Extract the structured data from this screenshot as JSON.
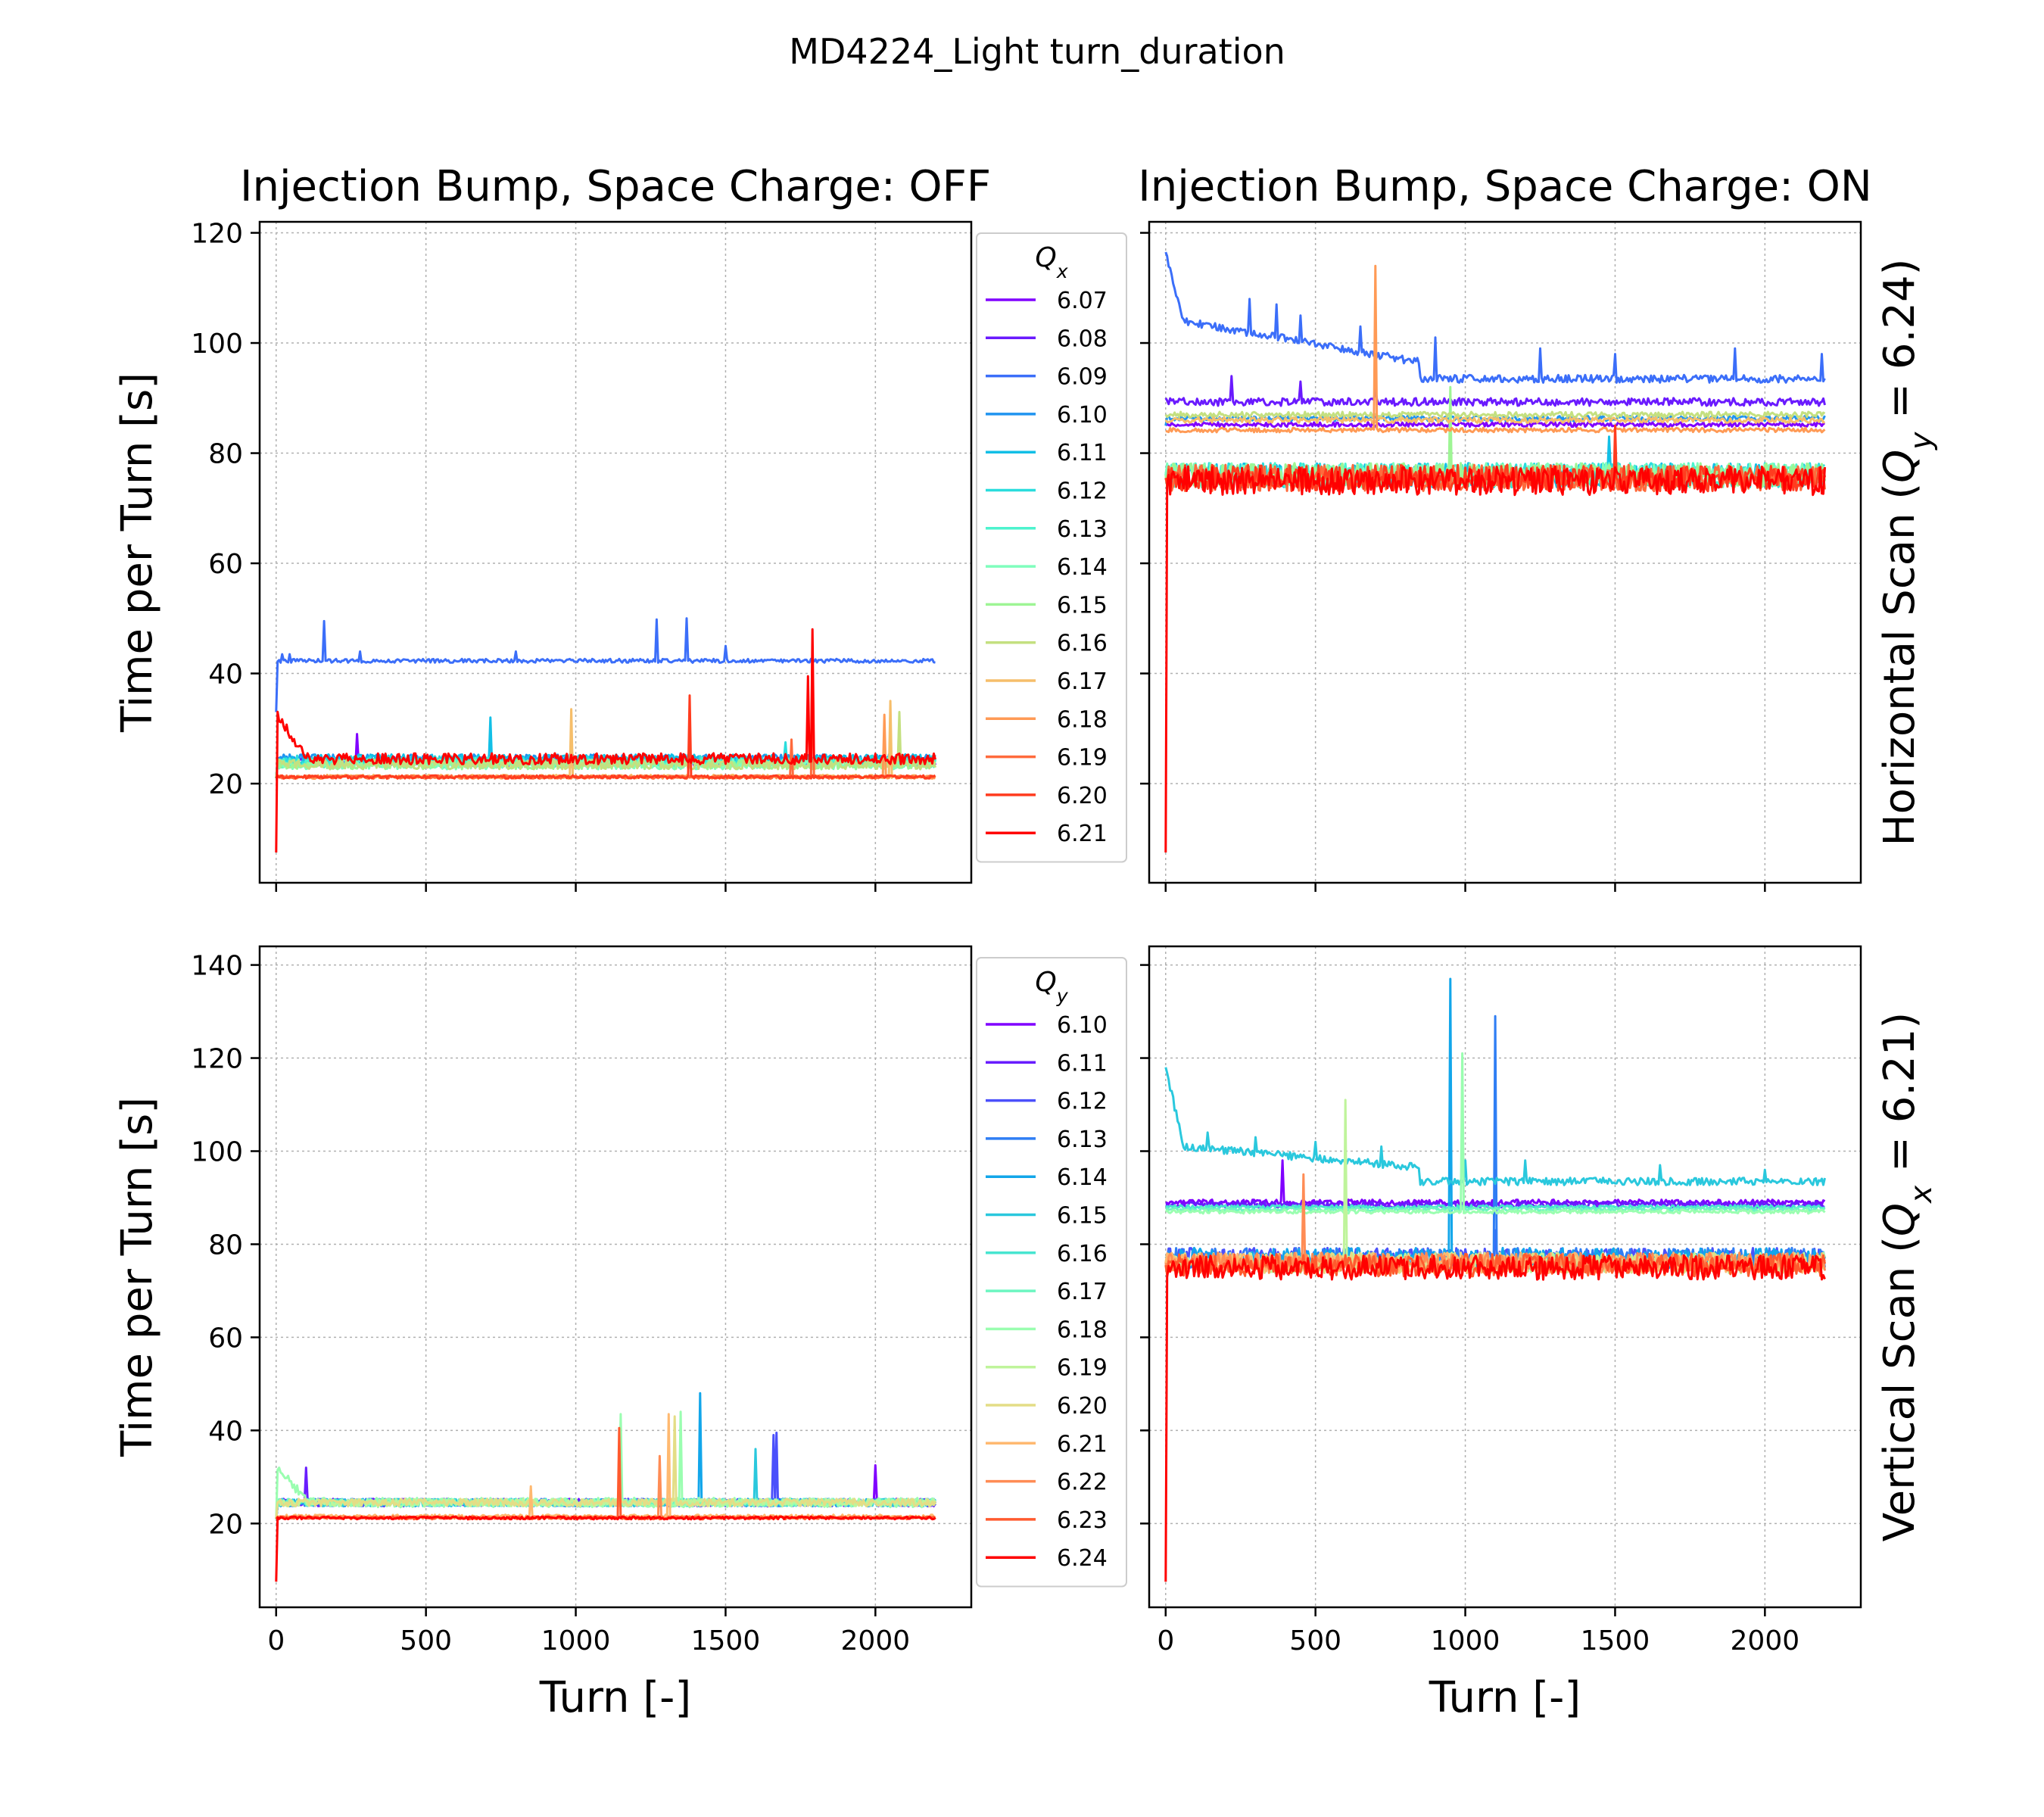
{
  "figure": {
    "suptitle": "MD4224_Light turn_duration",
    "col_titles": [
      "Injection Bump, Space Charge: OFF",
      "Injection Bump, Space Charge: ON"
    ],
    "row_labels": [
      "Horizontal Scan (Q_y = 6.24)",
      "Vertical Scan (Q_x = 6.21)"
    ],
    "xlabel": "Turn [-]",
    "ylabels": [
      "Time per Turn [s]",
      "Time per Turn  [s]"
    ]
  },
  "chart_data": [
    {
      "type": "line",
      "panel": "top-left",
      "title": "Injection Bump, Space Charge: OFF",
      "xlabel": "",
      "ylabel": "Time per Turn [s]",
      "xlim": [
        -55,
        2320
      ],
      "ylim": [
        2,
        122
      ],
      "xticks": [
        0,
        500,
        1000,
        1500,
        2000
      ],
      "yticks": [
        20,
        40,
        60,
        80,
        100,
        120
      ],
      "xticklabels_shown": false,
      "grid": true,
      "legend": {
        "title": "Q_x",
        "placement": "outside-right",
        "entries": [
          "6.07",
          "6.08",
          "6.09",
          "6.10",
          "6.11",
          "6.12",
          "6.13",
          "6.14",
          "6.15",
          "6.16",
          "6.17",
          "6.18",
          "6.19",
          "6.20",
          "6.21"
        ]
      },
      "x_end": 2200,
      "series": [
        {
          "name": "6.07",
          "color": "#8000ff",
          "start": 21,
          "level": 24,
          "noise": 0.8,
          "spikes": [
            [
              270,
              29
            ]
          ]
        },
        {
          "name": "6.08",
          "color": "#6a1afe",
          "start": 21,
          "level": 24,
          "noise": 0.8,
          "spikes": []
        },
        {
          "name": "6.09",
          "color": "#3b6ef9",
          "start": 33,
          "level": 42.3,
          "noise": 0.35,
          "spikes": [
            [
              20,
              43.5
            ],
            [
              45,
              43.5
            ],
            [
              160,
              49.5
            ],
            [
              280,
              44
            ],
            [
              800,
              44
            ],
            [
              1270,
              49.8
            ],
            [
              1370,
              50
            ],
            [
              1500,
              45
            ]
          ]
        },
        {
          "name": "6.10",
          "color": "#2094f0",
          "start": 21,
          "level": 24.5,
          "noise": 0.8,
          "spikes": []
        },
        {
          "name": "6.11",
          "color": "#12bfe6",
          "start": 21,
          "level": 24.5,
          "noise": 0.8,
          "spikes": [
            [
              715,
              32
            ]
          ]
        },
        {
          "name": "6.12",
          "color": "#2adddd",
          "start": 21,
          "level": 24.2,
          "noise": 0.9,
          "spikes": [
            [
              1700,
              27.5
            ]
          ]
        },
        {
          "name": "6.13",
          "color": "#4df3ce",
          "start": 21,
          "level": 23.8,
          "noise": 0.9,
          "spikes": []
        },
        {
          "name": "6.14",
          "color": "#7ffebd",
          "start": 21,
          "level": 23.5,
          "noise": 0.9,
          "spikes": []
        },
        {
          "name": "6.15",
          "color": "#9ef594",
          "start": 21,
          "level": 23.5,
          "noise": 0.9,
          "spikes": []
        },
        {
          "name": "6.16",
          "color": "#c4e080",
          "start": 21,
          "level": 23.5,
          "noise": 0.9,
          "spikes": [
            [
              2080,
              33
            ]
          ]
        },
        {
          "name": "6.17",
          "color": "#f6be6a",
          "start": 21,
          "level": 21.3,
          "noise": 0.3,
          "spikes": [
            [
              985,
              33.5
            ],
            [
              2050,
              35
            ]
          ]
        },
        {
          "name": "6.18",
          "color": "#ff9a55",
          "start": 21,
          "level": 21.2,
          "noise": 0.3,
          "spikes": [
            [
              2030,
              32.5
            ]
          ]
        },
        {
          "name": "6.19",
          "color": "#ff6a3c",
          "start": 21,
          "level": 21.2,
          "noise": 0.3,
          "spikes": [
            [
              1720,
              28
            ],
            [
              1790,
              45
            ]
          ]
        },
        {
          "name": "6.20",
          "color": "#ff3c1f",
          "start": 21,
          "level": 21.2,
          "noise": 0.3,
          "spikes": [
            [
              1380,
              36
            ]
          ]
        },
        {
          "name": "6.21",
          "color": "#ff0000",
          "start": 7.5,
          "level": 24.5,
          "peak": 32.5,
          "noise": 1.0,
          "spikes": [
            [
              1775,
              39.5
            ],
            [
              1790,
              48
            ]
          ]
        }
      ]
    },
    {
      "type": "line",
      "panel": "top-right",
      "title": "Injection Bump, Space Charge: ON",
      "xlabel": "",
      "ylabel": "",
      "xlim": [
        -55,
        2320
      ],
      "ylim": [
        2,
        122
      ],
      "xticks": [
        0,
        500,
        1000,
        1500,
        2000
      ],
      "yticks": [
        20,
        40,
        60,
        80,
        100,
        120
      ],
      "xticklabels_shown": false,
      "yticklabels_shown": false,
      "grid": true,
      "side_label": "Horizontal Scan (Q_y = 6.24)",
      "x_end": 2200,
      "series": [
        {
          "name": "6.07",
          "color": "#8000ff",
          "start": 85,
          "level": 85.2,
          "noise": 0.4,
          "spikes": []
        },
        {
          "name": "6.08",
          "color": "#6a1afe",
          "start": 90,
          "level": 89.3,
          "noise": 0.7,
          "spikes": [
            [
              220,
              94
            ],
            [
              450,
              93
            ],
            [
              700,
              92
            ]
          ]
        },
        {
          "name": "6.09",
          "color": "#3b6ef9",
          "start": 116.5,
          "level": 93.5,
          "peak": 104,
          "decay": "step",
          "noise": 0.7,
          "spikes": [
            [
              280,
              108
            ],
            [
              370,
              107
            ],
            [
              450,
              105
            ],
            [
              650,
              103
            ],
            [
              900,
              101
            ],
            [
              1250,
              99
            ],
            [
              1500,
              98
            ],
            [
              1900,
              99
            ],
            [
              2190,
              98
            ]
          ]
        },
        {
          "name": "6.10",
          "color": "#2094f0",
          "start": 85,
          "level": 86.3,
          "noise": 0.5,
          "spikes": []
        },
        {
          "name": "6.11",
          "color": "#12bfe6",
          "start": 76,
          "level": 76,
          "noise": 2.2,
          "spikes": [
            [
              1480,
              83
            ]
          ]
        },
        {
          "name": "6.12",
          "color": "#2adddd",
          "start": 76,
          "level": 76,
          "noise": 2.2,
          "spikes": []
        },
        {
          "name": "6.13",
          "color": "#4df3ce",
          "start": 76,
          "level": 76,
          "noise": 2.2,
          "spikes": []
        },
        {
          "name": "6.14",
          "color": "#7ffebd",
          "start": 76,
          "level": 76,
          "noise": 2.2,
          "spikes": []
        },
        {
          "name": "6.15",
          "color": "#9ef594",
          "start": 76,
          "level": 76,
          "noise": 2.2,
          "spikes": [
            [
              950,
              92
            ]
          ]
        },
        {
          "name": "6.16",
          "color": "#c4e080",
          "start": 87,
          "level": 87,
          "noise": 0.5,
          "spikes": []
        },
        {
          "name": "6.17",
          "color": "#f6be6a",
          "start": 86,
          "level": 86,
          "noise": 0.5,
          "spikes": []
        },
        {
          "name": "6.18",
          "color": "#ff9a55",
          "start": 84,
          "level": 84.2,
          "noise": 0.4,
          "spikes": [
            [
              700,
              114
            ]
          ]
        },
        {
          "name": "6.19",
          "color": "#ff6a3c",
          "start": 75.5,
          "level": 75.5,
          "noise": 2.4,
          "spikes": []
        },
        {
          "name": "6.20",
          "color": "#ff3c1f",
          "start": 75.5,
          "level": 75.5,
          "noise": 2.4,
          "spikes": [
            [
              1500,
              85
            ]
          ]
        },
        {
          "name": "6.21",
          "color": "#ff0000",
          "start": 7.5,
          "level": 75,
          "noise": 2.6,
          "spikes": []
        }
      ]
    },
    {
      "type": "line",
      "panel": "bottom-left",
      "title": "",
      "xlabel": "Turn [-]",
      "ylabel": "Time per Turn  [s]",
      "xlim": [
        -55,
        2320
      ],
      "ylim": [
        2,
        144
      ],
      "xticks": [
        0,
        500,
        1000,
        1500,
        2000
      ],
      "yticks": [
        20,
        40,
        60,
        80,
        100,
        120,
        140
      ],
      "grid": true,
      "legend": {
        "title": "Q_y",
        "placement": "outside-right",
        "entries": [
          "6.10",
          "6.11",
          "6.12",
          "6.13",
          "6.14",
          "6.15",
          "6.16",
          "6.17",
          "6.18",
          "6.19",
          "6.20",
          "6.21",
          "6.22",
          "6.23",
          "6.24"
        ]
      },
      "x_end": 2200,
      "series": [
        {
          "name": "6.10",
          "color": "#8000ff",
          "start": 21,
          "level": 24.5,
          "noise": 0.8,
          "spikes": [
            [
              2000,
              32.5
            ]
          ]
        },
        {
          "name": "6.11",
          "color": "#691dfe",
          "start": 21,
          "level": 24.5,
          "noise": 0.8,
          "spikes": [
            [
              100,
              32
            ]
          ]
        },
        {
          "name": "6.12",
          "color": "#4b50fb",
          "start": 21,
          "level": 24.5,
          "noise": 0.8,
          "spikes": [
            [
              1660,
              39
            ],
            [
              1670,
              39.5
            ]
          ]
        },
        {
          "name": "6.13",
          "color": "#2f7ef4",
          "start": 21,
          "level": 24.5,
          "noise": 0.8,
          "spikes": []
        },
        {
          "name": "6.14",
          "color": "#12a6ea",
          "start": 21,
          "level": 24.5,
          "noise": 0.8,
          "spikes": [
            [
              1415,
              48
            ]
          ]
        },
        {
          "name": "6.15",
          "color": "#2ac8dd",
          "start": 21,
          "level": 24.5,
          "noise": 0.8,
          "spikes": [
            [
              1600,
              36
            ]
          ]
        },
        {
          "name": "6.16",
          "color": "#47e5d0",
          "start": 21,
          "level": 24.5,
          "noise": 0.8,
          "spikes": []
        },
        {
          "name": "6.17",
          "color": "#6df6c1",
          "start": 21,
          "level": 24.5,
          "noise": 0.8,
          "spikes": []
        },
        {
          "name": "6.18",
          "color": "#9afeb0",
          "start": 21,
          "level": 24.5,
          "peak": 32,
          "noise": 1.0,
          "spikes": [
            [
              1150,
              43.5
            ],
            [
              1350,
              44
            ]
          ]
        },
        {
          "name": "6.19",
          "color": "#bff49b",
          "start": 21,
          "level": 24.5,
          "noise": 0.8,
          "spikes": []
        },
        {
          "name": "6.20",
          "color": "#e4dd86",
          "start": 21,
          "level": 24.5,
          "noise": 0.8,
          "spikes": [
            [
              1330,
              43
            ]
          ]
        },
        {
          "name": "6.21",
          "color": "#ffb970",
          "start": 21,
          "level": 21.5,
          "noise": 0.4,
          "spikes": [
            [
              1310,
              43.5
            ],
            [
              850,
              28
            ]
          ]
        },
        {
          "name": "6.22",
          "color": "#ff8c55",
          "start": 21,
          "level": 21.3,
          "noise": 0.3,
          "spikes": [
            [
              1280,
              34.5
            ]
          ]
        },
        {
          "name": "6.23",
          "color": "#ff5a2e",
          "start": 21,
          "level": 21.2,
          "noise": 0.3,
          "spikes": [
            [
              1145,
              40.5
            ]
          ]
        },
        {
          "name": "6.24",
          "color": "#ff0000",
          "start": 7.5,
          "level": 21.2,
          "noise": 0.3,
          "spikes": []
        }
      ]
    },
    {
      "type": "line",
      "panel": "bottom-right",
      "title": "",
      "xlabel": "Turn [-]",
      "ylabel": "",
      "xlim": [
        -55,
        2320
      ],
      "ylim": [
        2,
        144
      ],
      "xticks": [
        0,
        500,
        1000,
        1500,
        2000
      ],
      "yticks": [
        20,
        40,
        60,
        80,
        100,
        120,
        140
      ],
      "yticklabels_shown": false,
      "grid": true,
      "side_label": "Vertical Scan (Q_x = 6.21)",
      "x_end": 2200,
      "series": [
        {
          "name": "6.10",
          "color": "#8000ff",
          "start": 89,
          "level": 89,
          "noise": 0.6,
          "spikes": [
            [
              390,
              98
            ]
          ]
        },
        {
          "name": "6.11",
          "color": "#691dfe",
          "start": 88.5,
          "level": 88.5,
          "noise": 0.6,
          "spikes": []
        },
        {
          "name": "6.12",
          "color": "#4b50fb",
          "start": 77,
          "level": 77,
          "noise": 2.2,
          "spikes": [
            [
              1100,
              83
            ]
          ]
        },
        {
          "name": "6.13",
          "color": "#2f7ef4",
          "start": 77,
          "level": 77,
          "noise": 2.2,
          "spikes": [
            [
              1100,
              129
            ]
          ]
        },
        {
          "name": "6.14",
          "color": "#12a6ea",
          "start": 77,
          "level": 77,
          "noise": 2.2,
          "spikes": [
            [
              950,
              137
            ]
          ]
        },
        {
          "name": "6.15",
          "color": "#2ac8dd",
          "start": 118,
          "level": 93.5,
          "peak": 101,
          "decay": "step",
          "noise": 0.8,
          "spikes": [
            [
              140,
              104
            ],
            [
              300,
              103
            ],
            [
              500,
              102
            ],
            [
              720,
              101
            ],
            [
              1000,
              98
            ],
            [
              1200,
              98
            ],
            [
              1650,
              97
            ],
            [
              2000,
              96
            ]
          ]
        },
        {
          "name": "6.16",
          "color": "#47e5d0",
          "start": 88,
          "level": 88,
          "noise": 0.4,
          "spikes": []
        },
        {
          "name": "6.17",
          "color": "#6df6c1",
          "start": 87.5,
          "level": 87.5,
          "noise": 0.4,
          "spikes": []
        },
        {
          "name": "6.18",
          "color": "#9afeb0",
          "start": 87,
          "level": 87,
          "noise": 0.4,
          "spikes": [
            [
              990,
              121
            ]
          ]
        },
        {
          "name": "6.19",
          "color": "#bff49b",
          "start": 76,
          "level": 76,
          "noise": 2.2,
          "spikes": [
            [
              600,
              111
            ]
          ]
        },
        {
          "name": "6.20",
          "color": "#e4dd86",
          "start": 76,
          "level": 76,
          "noise": 2.2,
          "spikes": []
        },
        {
          "name": "6.21",
          "color": "#ffb970",
          "start": 76,
          "level": 76,
          "noise": 2.2,
          "spikes": []
        },
        {
          "name": "6.22",
          "color": "#ff8c55",
          "start": 76,
          "level": 76,
          "noise": 2.2,
          "spikes": [
            [
              460,
              95
            ]
          ]
        },
        {
          "name": "6.23",
          "color": "#ff5a2e",
          "start": 75.5,
          "level": 75.5,
          "noise": 2.4,
          "spikes": []
        },
        {
          "name": "6.24",
          "color": "#ff0000",
          "start": 7.5,
          "level": 75,
          "noise": 2.6,
          "spikes": []
        }
      ]
    }
  ]
}
